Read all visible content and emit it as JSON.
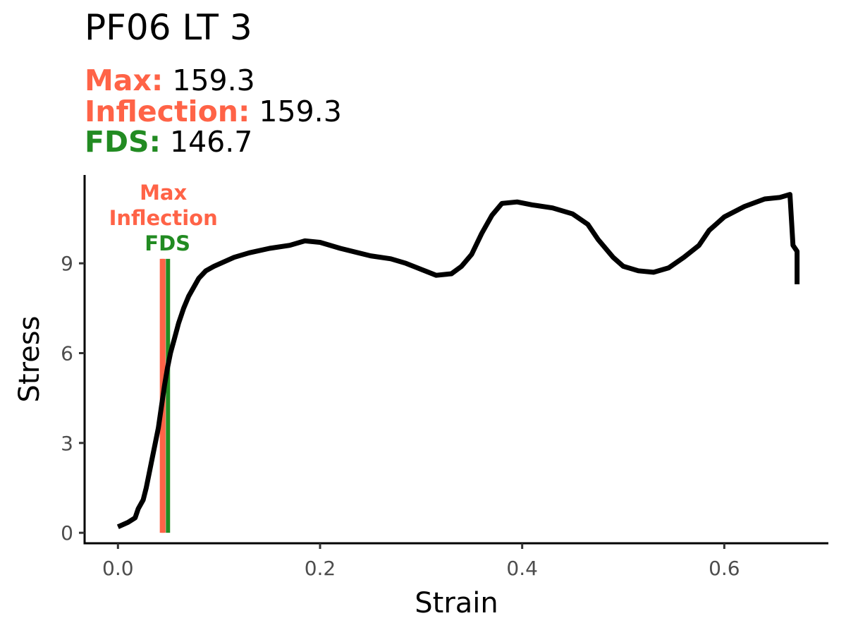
{
  "chart_data": {
    "type": "line",
    "title": "PF06 LT 3",
    "subtitle": [
      {
        "label": "Max:",
        "value": "159.3",
        "color": "#FF6347"
      },
      {
        "label": "Inflection:",
        "value": "159.3",
        "color": "#FF6347"
      },
      {
        "label": "FDS:",
        "value": "146.7",
        "color": "#228B22"
      }
    ],
    "xlabel": "Strain",
    "ylabel": "Stress",
    "xlim": [
      -0.033,
      0.703
    ],
    "ylim": [
      -0.35,
      11.95
    ],
    "x_ticks": [
      0.0,
      0.2,
      0.4,
      0.6
    ],
    "x_tick_labels": [
      "0.0",
      "0.2",
      "0.4",
      "0.6"
    ],
    "y_ticks": [
      0,
      3,
      6,
      9
    ],
    "y_tick_labels": [
      "0",
      "3",
      "6",
      "9"
    ],
    "grid": false,
    "series": [
      {
        "color": "#000000",
        "points": [
          [
            0.0,
            0.2
          ],
          [
            0.01,
            0.35
          ],
          [
            0.017,
            0.5
          ],
          [
            0.02,
            0.8
          ],
          [
            0.025,
            1.1
          ],
          [
            0.028,
            1.5
          ],
          [
            0.031,
            2.0
          ],
          [
            0.034,
            2.5
          ],
          [
            0.037,
            3.0
          ],
          [
            0.04,
            3.5
          ],
          [
            0.043,
            4.2
          ],
          [
            0.046,
            4.9
          ],
          [
            0.049,
            5.5
          ],
          [
            0.052,
            6.0
          ],
          [
            0.056,
            6.5
          ],
          [
            0.06,
            7.0
          ],
          [
            0.065,
            7.5
          ],
          [
            0.07,
            7.9
          ],
          [
            0.075,
            8.2
          ],
          [
            0.08,
            8.5
          ],
          [
            0.087,
            8.75
          ],
          [
            0.095,
            8.9
          ],
          [
            0.105,
            9.05
          ],
          [
            0.115,
            9.2
          ],
          [
            0.13,
            9.35
          ],
          [
            0.15,
            9.5
          ],
          [
            0.17,
            9.6
          ],
          [
            0.185,
            9.75
          ],
          [
            0.2,
            9.7
          ],
          [
            0.22,
            9.5
          ],
          [
            0.25,
            9.25
          ],
          [
            0.27,
            9.15
          ],
          [
            0.285,
            9.0
          ],
          [
            0.3,
            8.8
          ],
          [
            0.315,
            8.6
          ],
          [
            0.33,
            8.65
          ],
          [
            0.34,
            8.9
          ],
          [
            0.35,
            9.3
          ],
          [
            0.36,
            10.0
          ],
          [
            0.37,
            10.6
          ],
          [
            0.38,
            11.0
          ],
          [
            0.395,
            11.05
          ],
          [
            0.41,
            10.95
          ],
          [
            0.43,
            10.85
          ],
          [
            0.45,
            10.65
          ],
          [
            0.465,
            10.3
          ],
          [
            0.475,
            9.8
          ],
          [
            0.49,
            9.2
          ],
          [
            0.5,
            8.9
          ],
          [
            0.515,
            8.75
          ],
          [
            0.53,
            8.7
          ],
          [
            0.545,
            8.85
          ],
          [
            0.56,
            9.2
          ],
          [
            0.575,
            9.6
          ],
          [
            0.585,
            10.1
          ],
          [
            0.6,
            10.55
          ],
          [
            0.62,
            10.9
          ],
          [
            0.64,
            11.15
          ],
          [
            0.655,
            11.2
          ],
          [
            0.665,
            11.3
          ],
          [
            0.668,
            9.6
          ],
          [
            0.672,
            9.4
          ],
          [
            0.672,
            8.3
          ]
        ]
      }
    ],
    "vlines": [
      {
        "x": 0.0435,
        "ymin": 0,
        "ymax": 9.15,
        "color": "#FF6347",
        "label": "Max"
      },
      {
        "x": 0.045,
        "ymin": 0,
        "ymax": 9.15,
        "color": "#FF6347",
        "label": "Inflection"
      },
      {
        "x": 0.0495,
        "ymin": 0,
        "ymax": 9.15,
        "color": "#228B22",
        "label": "FDS"
      }
    ]
  }
}
